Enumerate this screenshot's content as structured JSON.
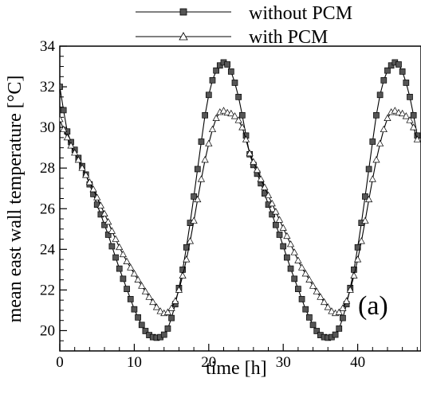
{
  "chart_data": {
    "type": "line",
    "xlabel": "time [h]",
    "ylabel": "mean east wall temperature [°C]",
    "panel_label": "(a)",
    "xlim": [
      0,
      48.5
    ],
    "ylim": [
      19,
      34
    ],
    "x_ticks": [
      0,
      10,
      20,
      30,
      40
    ],
    "y_ticks": [
      20,
      22,
      24,
      26,
      28,
      30,
      32,
      34
    ],
    "legend_position": "top-right",
    "series": [
      {
        "name": "without PCM",
        "marker": "square",
        "x": [
          0,
          0.5,
          1,
          1.5,
          2,
          2.5,
          3,
          3.5,
          4,
          4.5,
          5,
          5.5,
          6,
          6.5,
          7,
          7.5,
          8,
          8.5,
          9,
          9.5,
          10,
          10.5,
          11,
          11.5,
          12,
          12.5,
          13,
          13.5,
          14,
          14.5,
          15,
          15.5,
          16,
          16.5,
          17,
          17.5,
          18,
          18.5,
          19,
          19.5,
          20,
          20.5,
          21,
          21.5,
          22,
          22.5,
          23,
          23.5,
          24,
          24.5,
          25,
          25.5,
          26,
          26.5,
          27,
          27.5,
          28,
          28.5,
          29,
          29.5,
          30,
          30.5,
          31,
          31.5,
          32,
          32.5,
          33,
          33.5,
          34,
          34.5,
          35,
          35.5,
          36,
          36.5,
          37,
          37.5,
          38,
          38.5,
          39,
          39.5,
          40,
          40.5,
          41,
          41.5,
          42,
          42.5,
          43,
          43.5,
          44,
          44.5,
          45,
          45.5,
          46,
          46.5,
          47,
          47.5,
          48
        ],
        "values": [
          32.0,
          30.85,
          29.8,
          29.28,
          28.9,
          28.5,
          28.1,
          27.68,
          27.2,
          26.72,
          26.2,
          25.72,
          25.2,
          24.72,
          24.15,
          23.6,
          23.05,
          22.55,
          22.05,
          21.55,
          21.05,
          20.65,
          20.28,
          19.98,
          19.78,
          19.68,
          19.65,
          19.68,
          19.8,
          20.1,
          20.62,
          21.3,
          22.1,
          23.0,
          24.1,
          25.3,
          26.6,
          27.95,
          29.3,
          30.6,
          31.6,
          32.32,
          32.8,
          33.05,
          33.2,
          33.1,
          32.75,
          32.2,
          31.5,
          30.6,
          29.6,
          28.68,
          28.15,
          27.72,
          27.25,
          26.75,
          26.2,
          25.72,
          25.2,
          24.72,
          24.15,
          23.6,
          23.05,
          22.55,
          22.05,
          21.55,
          21.05,
          20.65,
          20.28,
          19.98,
          19.78,
          19.68,
          19.65,
          19.68,
          19.8,
          20.1,
          20.62,
          21.3,
          22.1,
          23.0,
          24.1,
          25.3,
          26.6,
          27.95,
          29.3,
          30.6,
          31.6,
          32.32,
          32.8,
          33.05,
          33.2,
          33.1,
          32.75,
          32.2,
          31.5,
          30.6,
          29.6
        ]
      },
      {
        "name": "with PCM",
        "marker": "triangle",
        "x": [
          0,
          0.5,
          1,
          1.5,
          2,
          2.5,
          3,
          3.5,
          4,
          4.5,
          5,
          5.5,
          6,
          6.5,
          7,
          7.5,
          8,
          8.5,
          9,
          9.5,
          10,
          10.5,
          11,
          11.5,
          12,
          12.5,
          13,
          13.5,
          14,
          14.5,
          15,
          15.5,
          16,
          16.5,
          17,
          17.5,
          18,
          18.5,
          19,
          19.5,
          20,
          20.5,
          21,
          21.5,
          22,
          22.5,
          23,
          23.5,
          24,
          24.5,
          25,
          25.5,
          26,
          26.5,
          27,
          27.5,
          28,
          28.5,
          29,
          29.5,
          30,
          30.5,
          31,
          31.5,
          32,
          32.5,
          33,
          33.5,
          34,
          34.5,
          35,
          35.5,
          36,
          36.5,
          37,
          37.5,
          38,
          38.5,
          39,
          39.5,
          40,
          40.5,
          41,
          41.5,
          42,
          42.5,
          43,
          43.5,
          44,
          44.5,
          45,
          45.5,
          46,
          46.5,
          47,
          47.5,
          48
        ],
        "values": [
          30.4,
          29.9,
          29.5,
          29.1,
          28.75,
          28.4,
          28.0,
          27.65,
          27.3,
          26.95,
          26.55,
          26.15,
          25.75,
          25.35,
          24.9,
          24.5,
          24.1,
          23.75,
          23.4,
          23.1,
          22.8,
          22.5,
          22.2,
          21.92,
          21.65,
          21.4,
          21.15,
          20.95,
          20.85,
          20.9,
          21.1,
          21.45,
          22.0,
          22.7,
          23.5,
          24.4,
          25.4,
          26.45,
          27.45,
          28.4,
          29.2,
          29.9,
          30.45,
          30.75,
          30.82,
          30.72,
          30.68,
          30.55,
          30.35,
          30.0,
          29.4,
          28.72,
          28.3,
          27.9,
          27.45,
          27.05,
          26.65,
          26.25,
          25.85,
          25.45,
          25.05,
          24.65,
          24.25,
          23.85,
          23.45,
          23.1,
          22.8,
          22.5,
          22.2,
          21.92,
          21.65,
          21.4,
          21.15,
          20.95,
          20.85,
          20.9,
          21.1,
          21.45,
          22.0,
          22.7,
          23.5,
          24.4,
          25.4,
          26.45,
          27.45,
          28.4,
          29.2,
          29.9,
          30.45,
          30.75,
          30.82,
          30.72,
          30.68,
          30.55,
          30.35,
          30.0,
          29.4
        ]
      }
    ]
  }
}
